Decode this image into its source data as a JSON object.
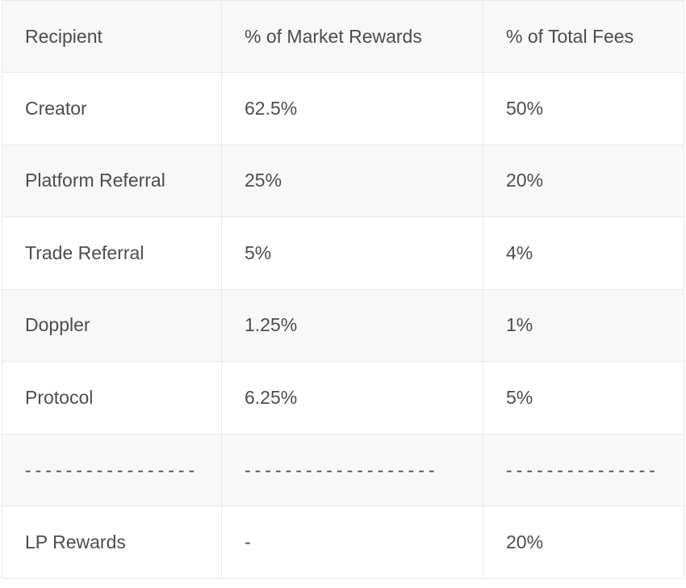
{
  "table": {
    "name": "Fee distribution table",
    "columns": [
      {
        "label": "Recipient"
      },
      {
        "label": "% of Market Rewards"
      },
      {
        "label": "% of Total Fees"
      }
    ],
    "rows": [
      {
        "cells": [
          "Creator",
          "62.5%",
          "50%"
        ]
      },
      {
        "cells": [
          "Platform Referral",
          "25%",
          "20%"
        ]
      },
      {
        "cells": [
          "Trade Referral",
          "5%",
          "4%"
        ]
      },
      {
        "cells": [
          "Doppler",
          "1.25%",
          "1%"
        ]
      },
      {
        "cells": [
          "Protocol",
          "6.25%",
          "5%"
        ]
      },
      {
        "cells": [
          "-----------------",
          "-------------------",
          "---------------"
        ]
      },
      {
        "cells": [
          "LP Rewards",
          "-",
          "20%"
        ]
      }
    ],
    "colors": {
      "header_bg": "#f8f8f8",
      "stripe_bg": "#f8f8f8",
      "row_bg": "#ffffff",
      "border": "#e9e9e9",
      "text": "#4c4c51"
    }
  }
}
